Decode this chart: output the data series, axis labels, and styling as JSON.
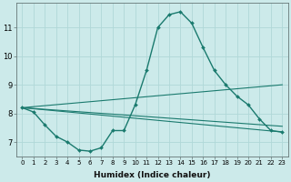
{
  "xlabel": "Humidex (Indice chaleur)",
  "background_color": "#cceaea",
  "line_color": "#1a7a6e",
  "grid_color": "#b0d8d8",
  "xlim": [
    -0.5,
    23.5
  ],
  "ylim": [
    6.5,
    11.85
  ],
  "yticks": [
    7,
    8,
    9,
    10,
    11
  ],
  "xticks": [
    0,
    1,
    2,
    3,
    4,
    5,
    6,
    7,
    8,
    9,
    10,
    11,
    12,
    13,
    14,
    15,
    16,
    17,
    18,
    19,
    20,
    21,
    22,
    23
  ],
  "main_series": {
    "x": [
      0,
      1,
      2,
      3,
      4,
      5,
      6,
      7,
      8,
      9,
      10,
      11,
      12,
      13,
      14,
      15,
      16,
      17,
      18,
      19,
      20,
      21,
      22,
      23
    ],
    "y": [
      8.2,
      8.05,
      7.6,
      7.2,
      7.0,
      6.72,
      6.68,
      6.8,
      7.4,
      7.4,
      8.3,
      9.5,
      11.0,
      11.45,
      11.55,
      11.15,
      10.3,
      9.5,
      9.0,
      8.6,
      8.3,
      7.8,
      7.4,
      7.35
    ],
    "marker": "D",
    "markersize": 2.0,
    "linewidth": 1.0
  },
  "straight_lines": [
    {
      "x0": 0,
      "y0": 8.2,
      "x1": 23,
      "y1": 9.0
    },
    {
      "x0": 0,
      "y0": 8.2,
      "x1": 23,
      "y1": 7.35
    },
    {
      "x0": 0,
      "y0": 8.2,
      "x1": 23,
      "y1": 7.35
    }
  ]
}
